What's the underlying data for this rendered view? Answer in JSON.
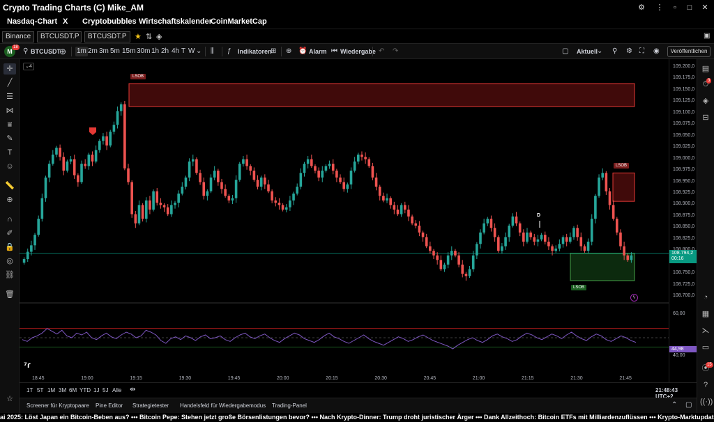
{
  "window": {
    "title": "Crypto Trading Charts (C) Mike_AM",
    "buttons": {
      "settings": "⚙",
      "more": "⋮",
      "minimize": "▫",
      "maximize": "□",
      "close": "✕"
    }
  },
  "menu": {
    "items": [
      "Nasdaq-Chart",
      "X",
      "Cryptobubbles",
      "Wirtschaftskalender",
      "CoinMarketCap"
    ]
  },
  "symbol_row": {
    "exchange": "Binance",
    "symbol_1": "BTCUSDT.P",
    "symbol_2": "BTCUSDT.P"
  },
  "toolbar": {
    "avatar_letter": "M",
    "avatar_badge": "18",
    "symbol": "BTCUSDT",
    "intervals": [
      "1m",
      "2m",
      "3m",
      "5m",
      "15m",
      "30m",
      "1h",
      "2h",
      "4h",
      "T",
      "W"
    ],
    "selected_interval": "1m",
    "indicators_label": "Indikatoren",
    "alert_label": "Alarm",
    "replay_label": "Wiedergabe",
    "layout_label": "Aktuell",
    "publish_label": "Veröffentlichen"
  },
  "chart_legend": {
    "collapsed_count": "4"
  },
  "annotations": {
    "lsob_top": "LSOB",
    "lsob_right": "LSOB",
    "lsob_bottom": "LSOB",
    "marker_d": "D"
  },
  "price_axis": {
    "labels": [
      "109.200,0",
      "109.175,0",
      "109.150,0",
      "109.125,0",
      "109.100,0",
      "109.075,0",
      "109.050,0",
      "109.025,0",
      "109.000,0",
      "108.975,0",
      "108.950,0",
      "108.925,0",
      "108.900,0",
      "108.875,0",
      "108.850,0",
      "108.825,0",
      "108.800,0",
      "108.775,0",
      "108.750,0",
      "108.725,0",
      "108.700,0"
    ],
    "current_price": "108.794,2",
    "countdown": "00:16",
    "rsi_labels": [
      "60,00",
      "40,00"
    ],
    "rsi_value": "44,98"
  },
  "time_axis": {
    "labels": [
      "18:45",
      "19:00",
      "19:15",
      "19:30",
      "19:45",
      "20:00",
      "20:15",
      "20:30",
      "20:45",
      "21:00",
      "21:15",
      "21:30",
      "21:45"
    ]
  },
  "colors": {
    "up": "#26a69a",
    "down": "#ef5350",
    "rsi_line": "#7e57c2",
    "accent": "#2962ff"
  },
  "chart_data": {
    "type": "candlestick",
    "ylim": [
      108700,
      109200
    ],
    "closes": [
      108782,
      108798,
      108812,
      108835,
      108870,
      108915,
      108960,
      108990,
      109010,
      109025,
      109005,
      108975,
      108995,
      109000,
      108965,
      108950,
      108990,
      108985,
      109010,
      108995,
      109020,
      109040,
      109050,
      109030,
      109060,
      109075,
      109105,
      109120,
      108980,
      108950,
      108880,
      108860,
      108900,
      108870,
      108910,
      108890,
      108930,
      108905,
      108900,
      108895,
      108880,
      108900,
      108905,
      108925,
      108940,
      108960,
      108995,
      109000,
      108970,
      108950,
      108920,
      108930,
      108960,
      108975,
      108950,
      108935,
      108920,
      108910,
      108915,
      108955,
      108990,
      109000,
      108985,
      108975,
      108955,
      108940,
      108960,
      108945,
      108930,
      108910,
      108905,
      108900,
      108890,
      108895,
      108910,
      108925,
      108940,
      108970,
      108990,
      109000,
      108985,
      108975,
      108960,
      108975,
      108985,
      108990,
      108975,
      108960,
      108950,
      108935,
      108945,
      108975,
      108995,
      109010,
      109005,
      109000,
      108985,
      108960,
      108940,
      108920,
      108910,
      108915,
      108900,
      108890,
      108880,
      108900,
      108890,
      108875,
      108860,
      108855,
      108840,
      108830,
      108810,
      108800,
      108790,
      108780,
      108760,
      108770,
      108790,
      108800,
      108790,
      108770,
      108750,
      108745,
      108760,
      108790,
      108815,
      108840,
      108860,
      108870,
      108850,
      108830,
      108800,
      108810,
      108830,
      108855,
      108875,
      108860,
      108840,
      108820,
      108840,
      108830,
      108820,
      108825,
      108835,
      108820,
      108810,
      108800,
      108805,
      108815,
      108830,
      108820,
      108830,
      108850,
      108830,
      108810,
      108800,
      108820,
      108870,
      108920,
      108960,
      108970,
      108930,
      108900,
      108870,
      108840,
      108810,
      108790,
      108780,
      108790
    ],
    "current_price": 108794.2,
    "zones": [
      {
        "label": "LSOB",
        "type": "supply",
        "from": 109115,
        "to": 109165
      },
      {
        "label": "LSOB",
        "type": "supply",
        "from": 108908,
        "to": 108970
      },
      {
        "label": "LSOB",
        "type": "demand",
        "from": 108735,
        "to": 108795
      }
    ],
    "rsi": {
      "upper": 60,
      "lower": 40,
      "last": 44.98,
      "values": [
        48,
        46,
        50,
        52,
        55,
        60,
        57,
        54,
        58,
        52,
        50,
        55,
        53,
        56,
        50,
        48,
        52,
        55,
        51,
        49,
        53,
        56,
        54,
        50,
        52,
        58,
        56,
        53,
        47,
        44,
        49,
        51,
        48,
        52,
        50,
        47,
        51,
        53,
        49,
        50,
        52,
        48,
        46,
        50,
        53,
        55,
        51,
        49,
        52,
        54,
        50,
        47,
        45,
        49,
        52,
        55,
        53,
        49,
        47,
        45,
        48,
        52,
        55,
        51,
        49,
        46,
        44,
        47,
        50,
        53,
        49,
        46,
        44,
        42,
        45,
        48,
        51,
        49,
        46,
        48,
        51,
        53,
        50,
        47,
        45,
        43,
        41,
        38,
        42,
        45,
        48,
        50,
        47,
        45,
        48,
        52,
        54,
        51,
        49,
        46,
        48,
        52,
        55,
        53,
        50,
        48,
        51,
        54,
        52,
        49,
        53,
        56,
        52,
        49,
        47,
        51,
        54,
        52,
        48,
        46,
        49,
        52,
        50,
        47,
        45
      ]
    }
  },
  "time_range": {
    "items": [
      "1T",
      "5T",
      "1M",
      "3M",
      "6M",
      "YTD",
      "1J",
      "5J",
      "Alle"
    ],
    "clock": "21:48:43 UTC+2"
  },
  "panels": {
    "items": [
      "Screener für Kryptopaare",
      "Pine Editor",
      "Strategietester",
      "Handelsfeld für Wiedergabemodus",
      "Trading-Panel"
    ]
  },
  "ticker": {
    "text": "ai 2025: Löst Japan ein Bitcoin-Beben aus? ••• Bitcoin Pepe: Stehen jetzt große Börsenlistungen bevor? ••• Nach Krypto-Dinner: Trump droht juristischer Ärger ••• Dank Allzeithoch: Bitcoin ETFs mit Milliardenzuflüssen ••• Krypto-Marktupdate: Bitcoin und ETH starten rot ins Wochenende"
  },
  "right_bar": {
    "alert_badge": "3",
    "news_badge": "15"
  }
}
